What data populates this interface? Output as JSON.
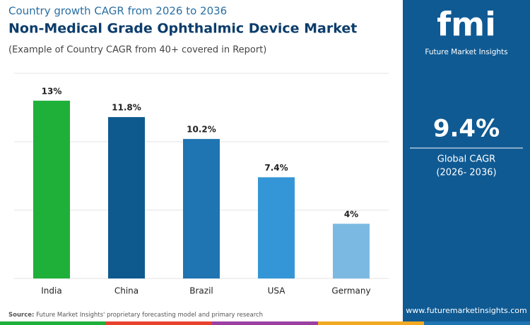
{
  "chart_data": {
    "type": "bar",
    "pretitle": "Country growth CAGR from 2026 to 2036",
    "title": "Non-Medical Grade Ophthalmic Device Market",
    "subtitle": "(Example of Country CAGR from 40+ covered in Report)",
    "categories": [
      "India",
      "China",
      "Brazil",
      "USA",
      "Germany"
    ],
    "values": [
      13,
      11.8,
      10.2,
      7.4,
      4
    ],
    "value_labels": [
      "13%",
      "11.8%",
      "10.2%",
      "7.4%",
      "4%"
    ],
    "colors": [
      "#1fb03a",
      "#0e5a8f",
      "#1f74b2",
      "#3496d6",
      "#7cb9e2"
    ],
    "ylim": [
      0,
      15
    ],
    "yticks": [
      5,
      10,
      15
    ],
    "grid": true
  },
  "source": {
    "label": "Source:",
    "text": "Future Market Insights' proprietary forecasting model and primary research"
  },
  "sidebar": {
    "logo": "fmi",
    "brand": "Future Market Insights",
    "cagr": "9.4%",
    "cagr_label": "Global CAGR",
    "period": "(2026- 2036)",
    "url": "www.futuremarketinsights.com"
  }
}
